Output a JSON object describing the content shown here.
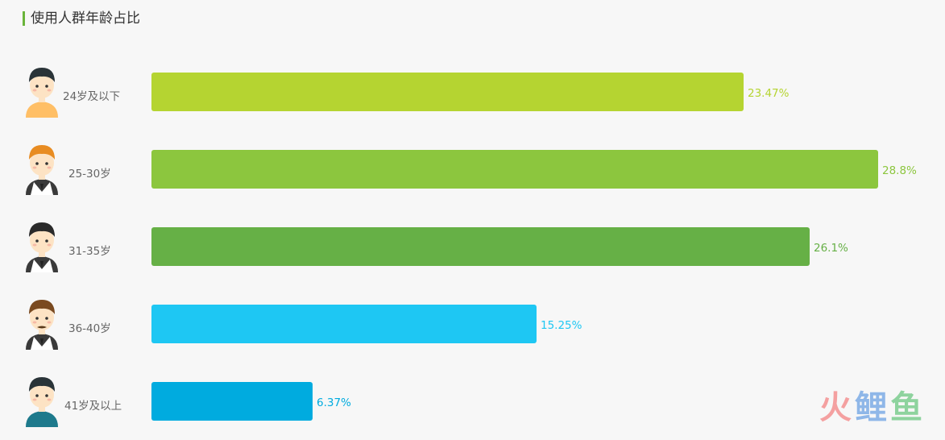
{
  "header": {
    "title": "使用人群年龄占比"
  },
  "chart_data": {
    "type": "bar",
    "orientation": "horizontal",
    "title": "使用人群年龄占比",
    "categories": [
      "24岁及以下",
      "25-30岁",
      "31-35岁",
      "36-40岁",
      "41岁及以上"
    ],
    "values": [
      23.47,
      28.8,
      26.1,
      15.25,
      6.37
    ],
    "value_labels": [
      "23.47%",
      "28.8%",
      "26.1%",
      "15.25%",
      "6.37%"
    ],
    "colors": [
      "#b5d431",
      "#8cc63e",
      "#66b046",
      "#1ec7f3",
      "#00abdf"
    ],
    "unit": "%",
    "grid": false,
    "legend": "none"
  },
  "avatars": [
    {
      "icon": "young-man-yellow-shirt-avatar-icon",
      "hair": "#2a3438",
      "shirt": "#ffbf66"
    },
    {
      "icon": "orange-hair-suit-man-avatar-icon",
      "hair": "#e88c22",
      "shirt": "#3a3a3a"
    },
    {
      "icon": "dark-hair-suit-man-avatar-icon",
      "hair": "#2a2a2a",
      "shirt": "#3a3a3a"
    },
    {
      "icon": "mustache-man-suit-avatar-icon",
      "hair": "#7a4a20",
      "shirt": "#3a3a3a"
    },
    {
      "icon": "older-man-teal-shirt-avatar-icon",
      "hair": "#2a3438",
      "shirt": "#1e7a8c"
    }
  ],
  "watermark": {
    "part1": "火",
    "part2": "鲤",
    "part3": "鱼"
  }
}
